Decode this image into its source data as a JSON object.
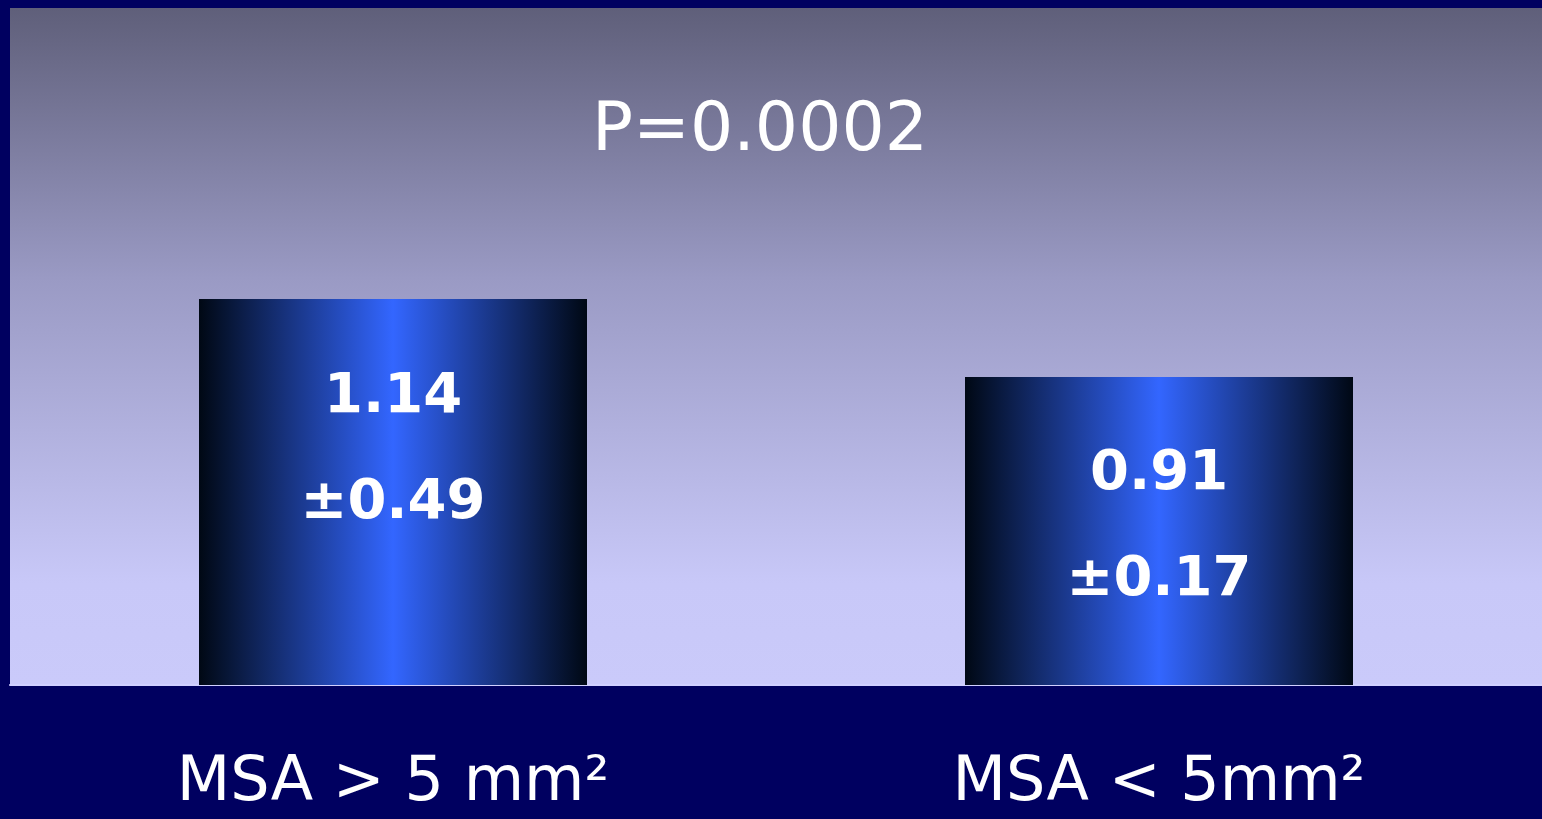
{
  "chart_data": {
    "type": "bar",
    "categories": [
      "MSA > 5 mm²",
      "MSA < 5mm²"
    ],
    "values": [
      1.14,
      0.91
    ],
    "value_labels": [
      "1.14\n±0.49",
      "0.91\n±0.17"
    ],
    "color": "#3366ff",
    "ylim": [
      0,
      2
    ],
    "tick_labels": "x",
    "annotations": [
      "P=0.0002"
    ]
  }
}
